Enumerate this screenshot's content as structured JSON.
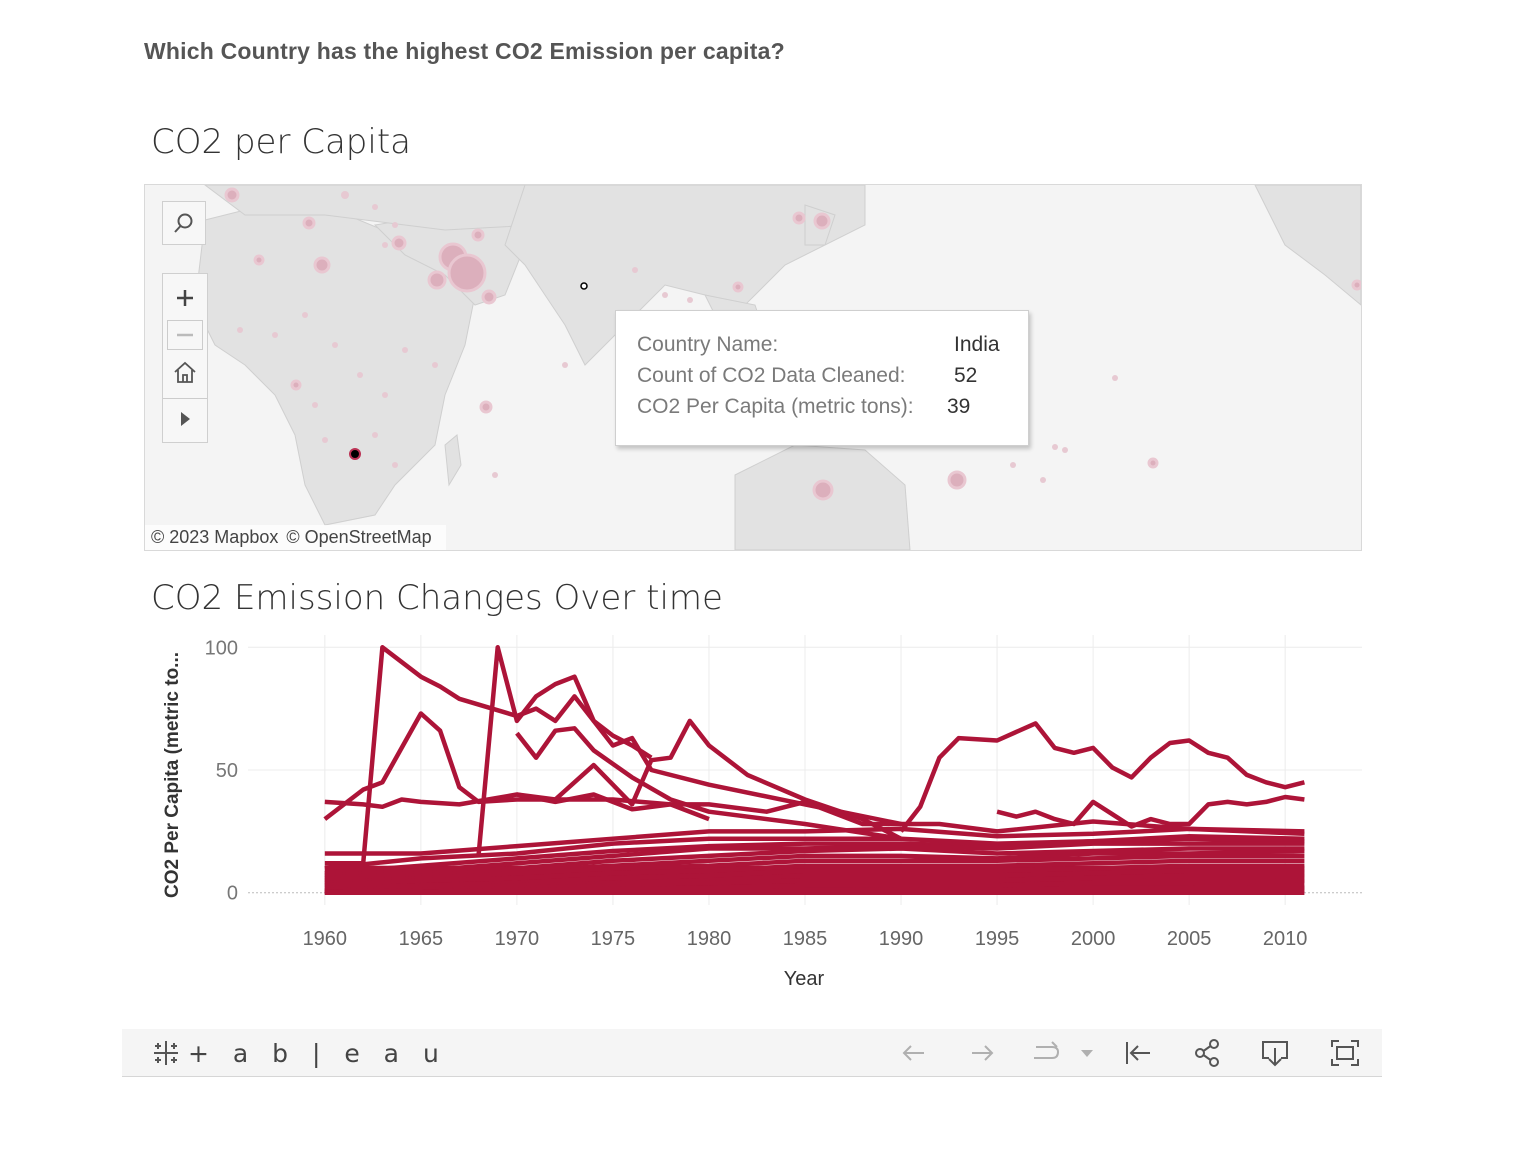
{
  "question": "Which Country has the highest CO2 Emission per capita?",
  "map": {
    "title": "CO2 per Capita",
    "attribution": [
      "© 2023 Mapbox",
      "© OpenStreetMap"
    ],
    "tools": [
      "search-icon",
      "zoom-in-icon",
      "zoom-out-icon",
      "home-icon",
      "play-icon"
    ],
    "tooltip": {
      "rows": [
        {
          "label": "Country Name:",
          "value": "India"
        },
        {
          "label": "Count of CO2 Data Cleaned:",
          "value": "52"
        },
        {
          "label": "CO2 Per Capita (metric tons):",
          "value": "39"
        }
      ]
    }
  },
  "line_section": {
    "title": "CO2 Emission Changes Over time"
  },
  "chart_data": {
    "type": "line",
    "xlabel": "Year",
    "ylabel": "CO2 Per Capita (metric to...",
    "x_ticks": [
      1960,
      1965,
      1970,
      1975,
      1980,
      1985,
      1990,
      1995,
      2000,
      2005,
      2010
    ],
    "y_ticks": [
      0,
      50,
      100
    ],
    "xlim": [
      1956,
      2014
    ],
    "ylim": [
      -5,
      105
    ],
    "color": "#ad1438",
    "series": [
      {
        "x": [
          1960,
          1962,
          1963,
          1965,
          1966,
          1967,
          1970,
          1971,
          1972,
          1973,
          1975,
          1976,
          1977,
          1980,
          1985,
          1990
        ],
        "y": [
          12,
          12,
          100,
          88,
          84,
          79,
          72,
          75,
          70,
          80,
          60,
          63,
          50,
          44,
          36,
          28
        ]
      },
      {
        "x": [
          1960,
          1962,
          1963,
          1965,
          1966,
          1967,
          1968,
          1970,
          1972,
          1974,
          1975,
          1976,
          1977,
          1978,
          1979,
          1980,
          1982,
          1985,
          1988,
          1990
        ],
        "y": [
          30,
          42,
          45,
          73,
          66,
          43,
          37,
          38,
          38,
          52,
          44,
          36,
          54,
          55,
          70,
          60,
          48,
          38,
          30,
          22
        ]
      },
      {
        "x": [
          1968,
          1969,
          1970,
          1971,
          1972,
          1973,
          1974,
          1975,
          1976,
          1977
        ],
        "y": [
          15,
          100,
          70,
          80,
          85,
          88,
          70,
          64,
          60,
          55
        ]
      },
      {
        "x": [
          1970,
          1971,
          1972,
          1973,
          1974,
          1976,
          1978,
          1980,
          1985,
          1990
        ],
        "y": [
          65,
          55,
          66,
          67,
          58,
          47,
          38,
          33,
          28,
          22
        ]
      },
      {
        "x": [
          1970,
          1972,
          1974,
          1975,
          1976,
          1978,
          1980
        ],
        "y": [
          40,
          37,
          40,
          37,
          34,
          36,
          30
        ]
      },
      {
        "x": [
          1960,
          1962,
          1963,
          1964,
          1965,
          1967,
          1970,
          1972,
          1975,
          1978,
          1980,
          1983,
          1985,
          1988,
          1990,
          1992,
          1995,
          2000,
          2005,
          2011
        ],
        "y": [
          37,
          36,
          35,
          38,
          37,
          36,
          40,
          38,
          38,
          36,
          36,
          33,
          37,
          28,
          28,
          28,
          25,
          29,
          26,
          24
        ]
      },
      {
        "x": [
          1990,
          1991,
          1992,
          1993,
          1995,
          1997,
          1998,
          1999,
          2000,
          2001,
          2002,
          2003,
          2004,
          2005,
          2006,
          2007,
          2008,
          2009,
          2010,
          2011
        ],
        "y": [
          25,
          35,
          55,
          63,
          62,
          69,
          59,
          57,
          59,
          51,
          47,
          55,
          61,
          62,
          57,
          55,
          48,
          45,
          43,
          45
        ]
      },
      {
        "x": [
          1995,
          1996,
          1997,
          1998,
          1999,
          2000,
          2001,
          2002,
          2003,
          2004,
          2005,
          2006,
          2007,
          2008,
          2009,
          2010,
          2011
        ],
        "y": [
          33,
          31,
          33,
          30,
          28,
          37,
          32,
          27,
          30,
          28,
          28,
          36,
          37,
          36,
          37,
          39,
          38
        ]
      },
      {
        "x": [
          1960,
          1965,
          1970,
          1975,
          1980,
          1985,
          1990,
          1995,
          2000,
          2005,
          2011
        ],
        "y": [
          16,
          16,
          19,
          22,
          25,
          25,
          26,
          23,
          24,
          26,
          25
        ]
      },
      {
        "x": [
          1960,
          1965,
          1970,
          1975,
          1980,
          1985,
          1990,
          1995,
          2000,
          2005,
          2011
        ],
        "y": [
          10,
          14,
          16,
          20,
          22,
          22,
          22,
          20,
          21,
          23,
          22
        ]
      },
      {
        "x": [
          1960,
          1965,
          1970,
          1975,
          1980,
          1985,
          1990,
          1995,
          2000,
          2005,
          2011
        ],
        "y": [
          8,
          11,
          14,
          17,
          19,
          20,
          20,
          19,
          21,
          22,
          21
        ]
      },
      {
        "x": [
          1960,
          1965,
          1970,
          1975,
          1980,
          1985,
          1990,
          1995,
          2000,
          2005,
          2011
        ],
        "y": [
          7,
          9,
          12,
          15,
          18,
          18,
          19,
          18,
          20,
          20,
          20
        ]
      },
      {
        "x": [
          1960,
          1965,
          1970,
          1975,
          1980,
          1985,
          1990,
          1995,
          2000,
          2005,
          2011
        ],
        "y": [
          6,
          8,
          10,
          13,
          15,
          17,
          18,
          16,
          17,
          18,
          18
        ]
      },
      {
        "x": [
          1960,
          1965,
          1970,
          1975,
          1980,
          1985,
          1990,
          1995,
          2000,
          2005,
          2011
        ],
        "y": [
          5,
          7,
          9,
          11,
          13,
          15,
          15,
          14,
          16,
          16,
          17
        ]
      },
      {
        "x": [
          1960,
          1965,
          1970,
          1975,
          1980,
          1985,
          1990,
          1995,
          2000,
          2005,
          2011
        ],
        "y": [
          4,
          6,
          8,
          10,
          11,
          13,
          13,
          13,
          14,
          15,
          15
        ]
      },
      {
        "x": [
          1960,
          1965,
          1970,
          1975,
          1980,
          1985,
          1990,
          1995,
          2000,
          2005,
          2011
        ],
        "y": [
          3,
          5,
          6,
          8,
          9,
          11,
          11,
          11,
          12,
          13,
          13
        ]
      },
      {
        "x": [
          1960,
          1965,
          1970,
          1975,
          1980,
          1985,
          1990,
          1995,
          2000,
          2005,
          2011
        ],
        "y": [
          2,
          3,
          4,
          6,
          7,
          9,
          9,
          9,
          10,
          11,
          11
        ]
      },
      {
        "x": [
          1960,
          1965,
          1970,
          1975,
          1980,
          1985,
          1990,
          1995,
          2000,
          2005,
          2011
        ],
        "y": [
          1,
          2,
          3,
          4,
          5,
          7,
          7,
          7,
          8,
          9,
          9
        ]
      },
      {
        "x": [
          1960,
          1965,
          1970,
          1975,
          1980,
          1985,
          1990,
          1995,
          2000,
          2005,
          2011
        ],
        "y": [
          0.5,
          1,
          2,
          3,
          4,
          5,
          5,
          5,
          6,
          7,
          7
        ]
      },
      {
        "x": [
          1960,
          1965,
          1970,
          1975,
          1980,
          1985,
          1990,
          1995,
          2000,
          2005,
          2011
        ],
        "y": [
          0.3,
          0.5,
          1,
          1.5,
          2,
          3,
          3,
          3,
          4,
          4,
          5
        ]
      },
      {
        "x": [
          1960,
          1965,
          1970,
          1975,
          1980,
          1985,
          1990,
          1995,
          2000,
          2005,
          2011
        ],
        "y": [
          0.1,
          0.2,
          0.4,
          0.6,
          0.8,
          1,
          1.2,
          1.3,
          1.5,
          1.8,
          2
        ]
      },
      {
        "x": [
          1960,
          2011
        ],
        "y": [
          0,
          0
        ]
      }
    ]
  },
  "toolbar": {
    "logo_text": "+ a b | e a u",
    "icons": [
      "undo-icon",
      "redo-icon",
      "revert-icon",
      "dropdown-icon",
      "reset-icon",
      "share-icon",
      "download-icon",
      "fullscreen-icon"
    ]
  }
}
